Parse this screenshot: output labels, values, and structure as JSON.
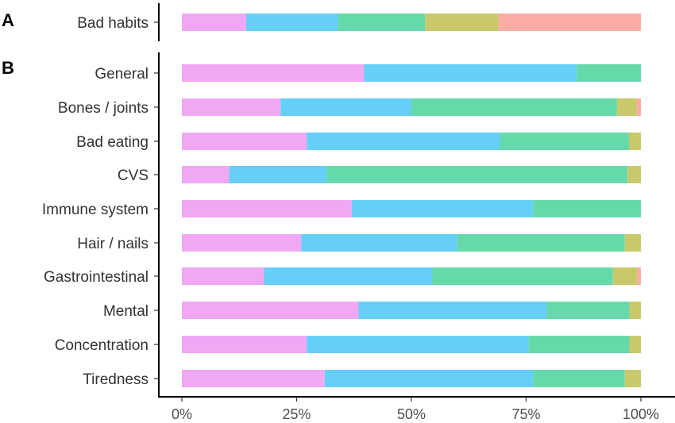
{
  "chart_data": [
    {
      "panel": "A",
      "type": "bar",
      "orientation": "horizontal",
      "stacked": true,
      "categories": [
        "Bad habits"
      ],
      "series": [
        {
          "values": [
            14
          ],
          "color": "#F0A8F5"
        },
        {
          "values": [
            20
          ],
          "color": "#66CFF7"
        },
        {
          "values": [
            19
          ],
          "color": "#66D9AB"
        },
        {
          "values": [
            16
          ],
          "color": "#C9C96B"
        },
        {
          "values": [
            31
          ],
          "color": "#FBADA5"
        }
      ],
      "xlim": [
        0,
        100
      ]
    },
    {
      "panel": "B",
      "type": "bar",
      "orientation": "horizontal",
      "stacked": true,
      "categories": [
        "General",
        "Bones / joints",
        "Bad eating",
        "CVS",
        "Immune system",
        "Hair / nails",
        "Gastrointestinal",
        "Mental",
        "Concentration",
        "Tiredness"
      ],
      "series": [
        {
          "values": [
            39.7,
            21.5,
            27.2,
            10.3,
            37.0,
            26.0,
            17.9,
            38.5,
            27.2,
            31.1
          ],
          "color": "#F0A8F5"
        },
        {
          "values": [
            46.3,
            28.5,
            42.1,
            21.2,
            39.5,
            34.0,
            36.6,
            41.0,
            48.3,
            45.4
          ],
          "color": "#66CFF7"
        },
        {
          "values": [
            14.0,
            44.8,
            28.1,
            65.6,
            23.5,
            36.5,
            39.4,
            18.0,
            22.0,
            20.0
          ],
          "color": "#66D9AB"
        },
        {
          "values": [
            0,
            4.3,
            2.6,
            2.9,
            0,
            3.5,
            5.3,
            2.5,
            2.5,
            3.5
          ],
          "color": "#C9C96B"
        },
        {
          "values": [
            0,
            0.9,
            0,
            0,
            0,
            0,
            0.8,
            0,
            0,
            0
          ],
          "color": "#FBADA5"
        }
      ],
      "xlim": [
        0,
        100
      ],
      "xticks": [
        "0%",
        "25%",
        "50%",
        "75%",
        "100%"
      ]
    }
  ]
}
